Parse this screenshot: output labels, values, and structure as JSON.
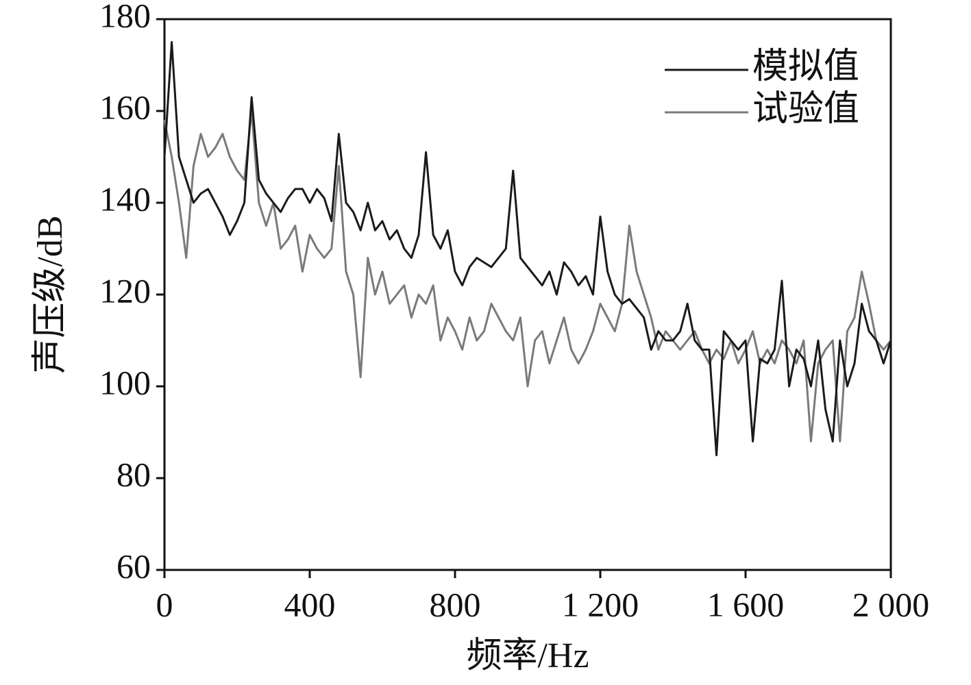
{
  "chart_data": {
    "type": "line",
    "x_label": "频率/Hz",
    "y_label": "声压级/dB",
    "x": [
      0,
      20,
      40,
      60,
      80,
      100,
      120,
      140,
      160,
      180,
      200,
      220,
      240,
      260,
      280,
      300,
      320,
      340,
      360,
      380,
      400,
      420,
      440,
      460,
      480,
      500,
      520,
      540,
      560,
      580,
      600,
      620,
      640,
      660,
      680,
      700,
      720,
      740,
      760,
      780,
      800,
      820,
      840,
      860,
      880,
      900,
      920,
      940,
      960,
      980,
      1000,
      1020,
      1040,
      1060,
      1080,
      1100,
      1120,
      1140,
      1160,
      1180,
      1200,
      1220,
      1240,
      1260,
      1280,
      1300,
      1320,
      1340,
      1360,
      1380,
      1400,
      1420,
      1440,
      1460,
      1480,
      1500,
      1520,
      1540,
      1560,
      1580,
      1600,
      1620,
      1640,
      1660,
      1680,
      1700,
      1720,
      1740,
      1760,
      1780,
      1800,
      1820,
      1840,
      1860,
      1880,
      1900,
      1920,
      1940,
      1960,
      1980,
      2000
    ],
    "series": [
      {
        "name": "模拟值",
        "color": "#1a1a1a",
        "values": [
          150,
          175,
          150,
          145,
          140,
          142,
          143,
          140,
          137,
          133,
          136,
          140,
          163,
          145,
          142,
          140,
          138,
          141,
          143,
          143,
          140,
          143,
          141,
          136,
          155,
          140,
          138,
          134,
          140,
          134,
          136,
          132,
          134,
          130,
          128,
          133,
          151,
          133,
          130,
          134,
          125,
          122,
          126,
          128,
          127,
          126,
          128,
          130,
          147,
          128,
          126,
          124,
          122,
          125,
          120,
          127,
          125,
          122,
          124,
          120,
          137,
          125,
          120,
          118,
          119,
          117,
          115,
          108,
          112,
          110,
          110,
          112,
          118,
          110,
          108,
          108,
          85,
          112,
          110,
          108,
          110,
          88,
          106,
          105,
          108,
          123,
          100,
          108,
          106,
          100,
          110,
          95,
          88,
          110,
          100,
          105,
          118,
          112,
          110,
          105,
          110
        ]
      },
      {
        "name": "试验值",
        "color": "#7a7a7a",
        "values": [
          158,
          150,
          140,
          128,
          148,
          155,
          150,
          152,
          155,
          150,
          147,
          145,
          160,
          140,
          135,
          140,
          130,
          132,
          135,
          125,
          133,
          130,
          128,
          130,
          148,
          125,
          120,
          102,
          128,
          120,
          125,
          118,
          120,
          122,
          115,
          120,
          118,
          122,
          110,
          115,
          112,
          108,
          115,
          110,
          112,
          118,
          115,
          112,
          110,
          115,
          100,
          110,
          112,
          105,
          110,
          115,
          108,
          105,
          108,
          112,
          118,
          115,
          112,
          118,
          135,
          125,
          120,
          115,
          108,
          112,
          110,
          108,
          110,
          112,
          108,
          105,
          108,
          106,
          110,
          105,
          108,
          112,
          105,
          108,
          105,
          110,
          108,
          105,
          110,
          88,
          105,
          108,
          110,
          88,
          112,
          115,
          125,
          118,
          110,
          108,
          110
        ]
      }
    ],
    "xlim": [
      0,
      2000
    ],
    "xticks": [
      0,
      400,
      800,
      {
        "value": 1200,
        "label": "1 200"
      },
      {
        "value": 1600,
        "label": "1 600"
      },
      {
        "value": 2000,
        "label": "2 000"
      }
    ],
    "ylim": [
      60,
      180
    ],
    "yticks": [
      60,
      80,
      100,
      120,
      140,
      160,
      180
    ],
    "legend": "upper right",
    "grid": false
  }
}
